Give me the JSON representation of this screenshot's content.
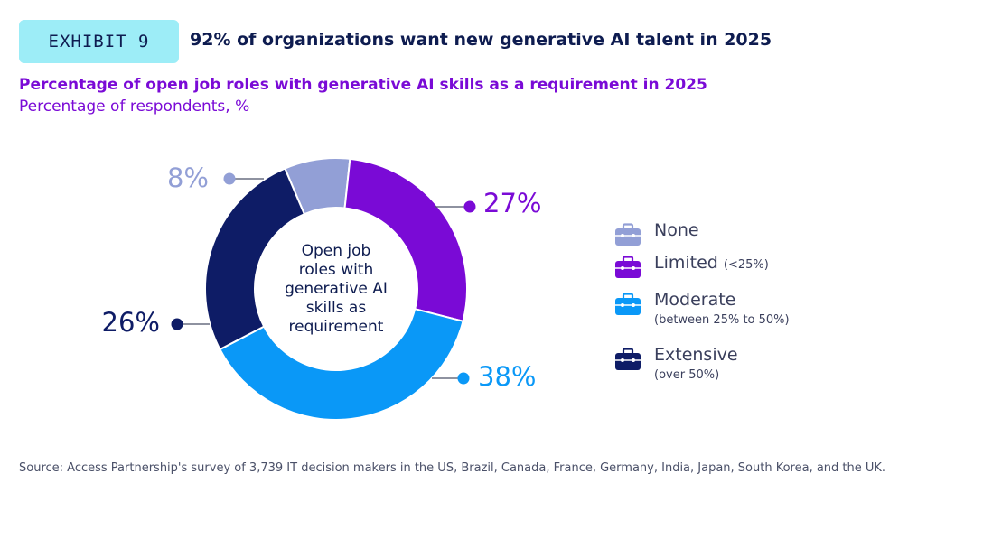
{
  "header": {
    "exhibit_label": "EXHIBIT 9",
    "title": "92% of organizations want new generative AI talent in 2025"
  },
  "subtitle": "Percentage of open job roles with generative AI skills as a requirement in 2025",
  "unit_label": "Percentage of respondents, %",
  "center_label": [
    "Open job",
    "roles with",
    "generative AI",
    "skills as",
    "requirement"
  ],
  "chart_data": {
    "type": "pie",
    "style": "donut",
    "start_angle_deg": -23,
    "direction": "clockwise",
    "categories": [
      "None",
      "Limited",
      "Moderate",
      "Extensive"
    ],
    "values": [
      8,
      27,
      38,
      26
    ],
    "value_labels": [
      "8%",
      "27%",
      "38%",
      "26%"
    ],
    "colors": [
      "#929fd6",
      "#7a0ad6",
      "#0a98f7",
      "#0e1c66"
    ]
  },
  "legend": [
    {
      "label": "None",
      "note": "",
      "note_below": "",
      "icon": "briefcase-icon",
      "color": "#929fd6"
    },
    {
      "label": "Limited",
      "note": "(<25%)",
      "note_below": "",
      "icon": "briefcase-icon",
      "color": "#7a0ad6"
    },
    {
      "label": "Moderate",
      "note": "",
      "note_below": "(between 25% to 50%)",
      "icon": "briefcase-icon",
      "color": "#0a98f7"
    },
    {
      "label": "Extensive",
      "note": "",
      "note_below": "(over 50%)",
      "icon": "briefcase-icon",
      "color": "#0e1c66"
    }
  ],
  "source": "Source: Access Partnership's survey of 3,739 IT decision makers in the US, Brazil, Canada, France, Germany, India, Japan, South Korea, and the UK."
}
